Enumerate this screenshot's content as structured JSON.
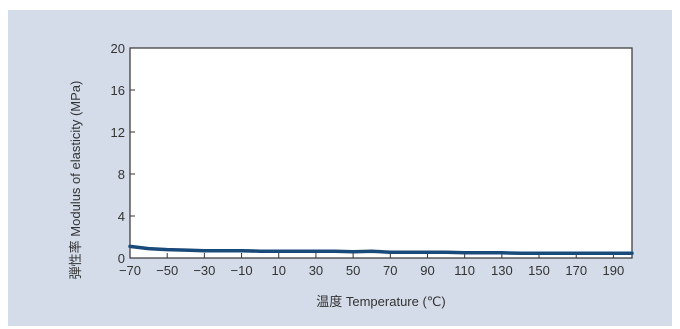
{
  "chart_data": {
    "type": "line",
    "xlabel": "温度 Temperature (℃)",
    "ylabel": "弾性率 Modulus of elasticity (MPa)",
    "xlim": [
      -70,
      200
    ],
    "ylim": [
      0,
      20
    ],
    "x_ticks": [
      "-70",
      "-50",
      "-30",
      "-10",
      "10",
      "30",
      "50",
      "70",
      "90",
      "110",
      "130",
      "150",
      "170",
      "190"
    ],
    "y_ticks": [
      "0",
      "4",
      "8",
      "12",
      "16",
      "20"
    ],
    "grid": false,
    "series": [
      {
        "color": "#1a4a7a",
        "x": [
          -70,
          -60,
          -50,
          -40,
          -30,
          -20,
          -10,
          0,
          10,
          20,
          30,
          40,
          50,
          60,
          70,
          80,
          90,
          100,
          110,
          120,
          130,
          140,
          150,
          160,
          170,
          180,
          190,
          200
        ],
        "y": [
          1.1,
          0.9,
          0.8,
          0.75,
          0.7,
          0.7,
          0.7,
          0.65,
          0.65,
          0.65,
          0.65,
          0.65,
          0.6,
          0.65,
          0.55,
          0.55,
          0.55,
          0.55,
          0.5,
          0.5,
          0.5,
          0.45,
          0.45,
          0.45,
          0.45,
          0.45,
          0.45,
          0.45
        ]
      }
    ]
  }
}
